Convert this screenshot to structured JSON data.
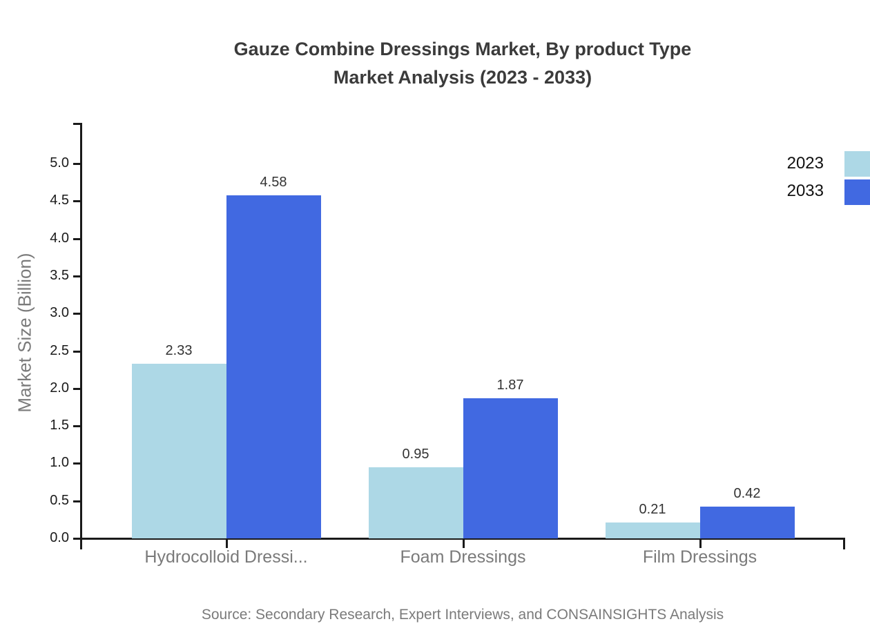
{
  "title": {
    "line1": "Gauze Combine Dressings Market, By product Type",
    "line2": "Market Analysis (2023 - 2033)"
  },
  "source": "Source: Secondary Research, Expert Interviews, and CONSAINSIGHTS Analysis",
  "legend": [
    {
      "label": "2023",
      "color": "#ADD8E6"
    },
    {
      "label": "2033",
      "color": "#4169E1"
    }
  ],
  "colors": {
    "series_2023": "#ADD8E6",
    "series_2033": "#4169E1",
    "axis": "#1a1a1a",
    "muted_text": "#7a7a7a",
    "title_text": "#3b3b3b"
  },
  "chart_data": {
    "type": "bar",
    "categories": [
      "Hydrocolloid Dressi...",
      "Foam Dressings",
      "Film Dressings"
    ],
    "series": [
      {
        "name": "2023",
        "color": "#ADD8E6",
        "values": [
          2.33,
          0.95,
          0.21
        ]
      },
      {
        "name": "2033",
        "color": "#4169E1",
        "values": [
          4.58,
          1.87,
          0.42
        ]
      }
    ],
    "title": "Gauze Combine Dressings Market, By product Type Market Analysis (2023 - 2033)",
    "xlabel": "",
    "ylabel": "Market Size (Billion)",
    "ylim": [
      0,
      5.5
    ],
    "yticks": [
      0.0,
      0.5,
      1.0,
      1.5,
      2.0,
      2.5,
      3.0,
      3.5,
      4.0,
      4.5,
      5.0
    ],
    "grid": false,
    "legend_position": "top-right",
    "value_labels": true
  }
}
